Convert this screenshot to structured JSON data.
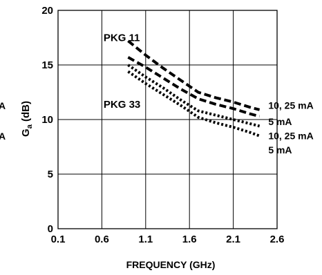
{
  "chart_data": {
    "type": "line",
    "title": "",
    "xlabel": "FREQUENCY (GHz)",
    "ylabel": "G",
    "ylabel_sub": "a",
    "ylabel_unit": " (dB)",
    "xlim": [
      0.1,
      2.6
    ],
    "ylim": [
      0,
      20
    ],
    "x_ticks": [
      "0.1",
      "0.6",
      "1.1",
      "1.6",
      "2.1",
      "2.6"
    ],
    "y_ticks": [
      "0",
      "5",
      "10",
      "15",
      "20"
    ],
    "grid": true,
    "legend": "none",
    "series": [
      {
        "style": "dashed",
        "x": [
          0.9,
          1.1,
          1.3,
          1.5,
          1.7,
          1.9,
          2.1,
          2.3,
          2.4
        ],
        "y": [
          17.2,
          15.9,
          14.7,
          13.6,
          12.5,
          12.0,
          11.6,
          11.1,
          10.9
        ]
      },
      {
        "style": "dashed",
        "x": [
          0.9,
          1.1,
          1.3,
          1.5,
          1.7,
          1.9,
          2.1,
          2.3,
          2.4
        ],
        "y": [
          15.7,
          14.8,
          13.8,
          12.8,
          11.9,
          11.4,
          11.0,
          10.5,
          10.3
        ]
      },
      {
        "style": "dotted",
        "x": [
          0.9,
          1.1,
          1.3,
          1.5,
          1.7,
          1.9,
          2.1,
          2.3,
          2.4
        ],
        "y": [
          15.0,
          13.9,
          12.9,
          11.8,
          10.8,
          10.4,
          10.0,
          9.6,
          9.4
        ]
      },
      {
        "style": "dotted",
        "x": [
          0.9,
          1.1,
          1.3,
          1.5,
          1.7,
          1.9,
          2.1,
          2.3,
          2.4
        ],
        "y": [
          14.4,
          13.3,
          12.3,
          11.3,
          10.2,
          9.7,
          9.3,
          8.8,
          8.5
        ]
      }
    ],
    "annotations": [
      {
        "text": "PKG 11",
        "x": 0.62,
        "y": 17.5
      },
      {
        "text": "PKG 33",
        "x": 0.62,
        "y": 11.4
      },
      {
        "text": "10, 25 mA",
        "x": 2.5,
        "y": 11.3
      },
      {
        "text": "5 mA",
        "x": 2.5,
        "y": 9.8
      },
      {
        "text": "10, 25 mA",
        "x": 2.5,
        "y": 8.5
      },
      {
        "text": "5 mA",
        "x": 2.5,
        "y": 7.2
      }
    ],
    "edge_fragments": [
      "A",
      "A"
    ]
  }
}
